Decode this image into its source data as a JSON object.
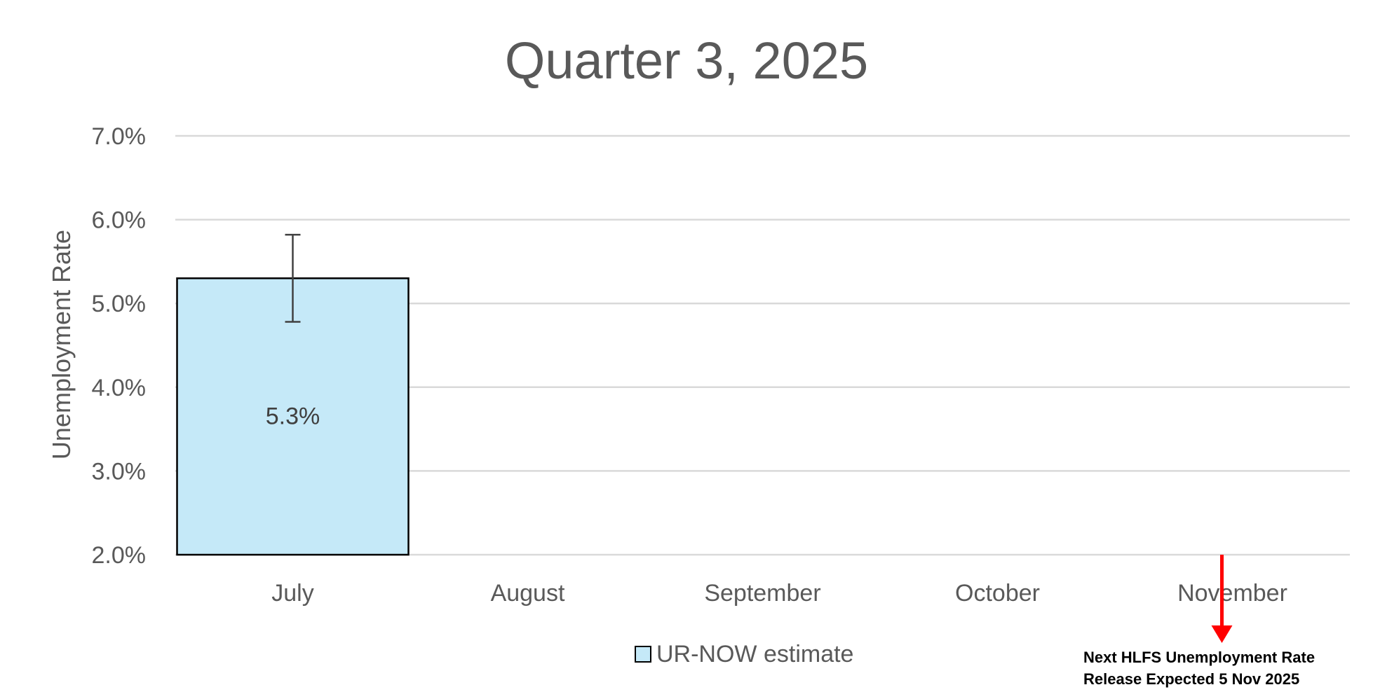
{
  "chart_data": {
    "type": "bar",
    "title": "Quarter 3, 2025",
    "ylabel": "Unemployment Rate",
    "xlabel": "",
    "categories": [
      "July",
      "August",
      "September",
      "October",
      "November"
    ],
    "series": [
      {
        "name": "UR-NOW estimate",
        "values": [
          5.3,
          null,
          null,
          null,
          null
        ],
        "error_low": [
          4.78,
          null,
          null,
          null,
          null
        ],
        "error_high": [
          5.82,
          null,
          null,
          null,
          null
        ],
        "data_labels": [
          "5.3%",
          "",
          "",
          "",
          ""
        ]
      }
    ],
    "ylim": [
      2.0,
      7.0
    ],
    "yticks": [
      2.0,
      3.0,
      4.0,
      5.0,
      6.0,
      7.0
    ],
    "ytick_labels": [
      "2.0%",
      "3.0%",
      "4.0%",
      "5.0%",
      "6.0%",
      "7.0%"
    ],
    "grid": true,
    "legend_position": "bottom",
    "annotation": {
      "line1": "Next HLFS Unemployment Rate",
      "line2": "Release Expected 5 Nov 2025",
      "arrow_category": "November"
    }
  },
  "colors": {
    "bar_fill": "#c5e9f8",
    "bar_stroke": "#000000",
    "grid": "#d9d9d9",
    "text": "#595959",
    "arrow": "#ff0000",
    "error_bar": "#404040"
  }
}
